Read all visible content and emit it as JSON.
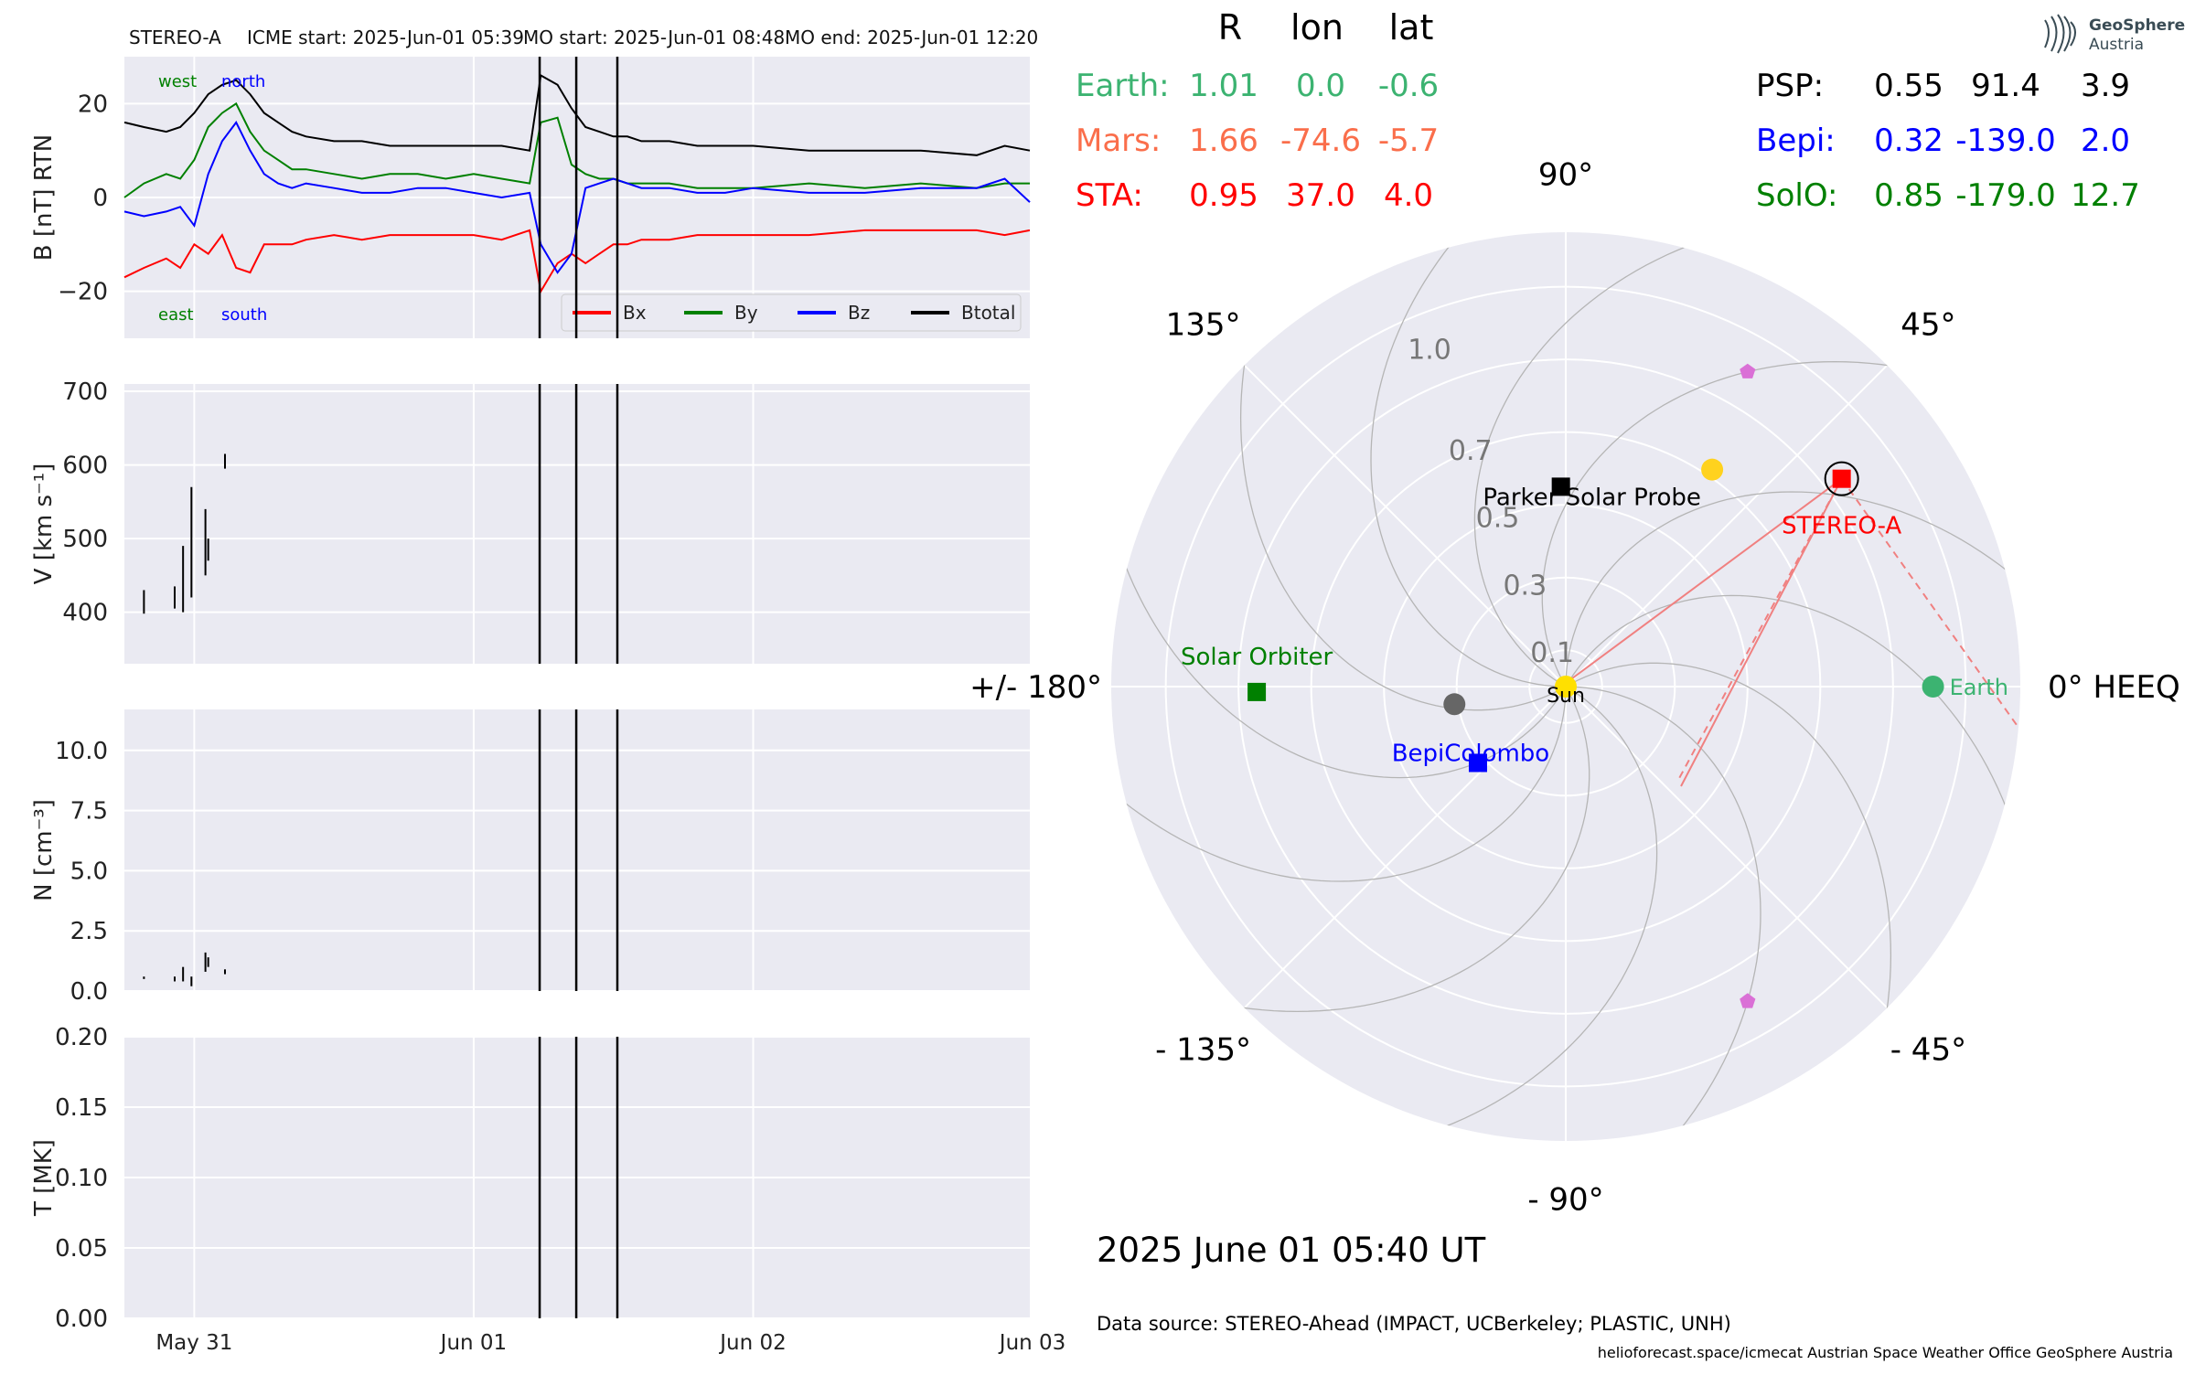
{
  "header": {
    "spacecraft": "STEREO-A",
    "icme_start": "ICME start: 2025-Jun-01 05:39",
    "mo_start": "MO start: 2025-Jun-01 08:48",
    "mo_end": "MO end: 2025-Jun-01 12:20"
  },
  "positions_table": {
    "col_headers": [
      "R",
      "lon",
      "lat"
    ],
    "left_rows": [
      {
        "name": "Earth:",
        "R": "1.01",
        "lon": "0.0",
        "lat": "-0.6",
        "color": "#3cb371"
      },
      {
        "name": "Mars:",
        "R": "1.66",
        "lon": "-74.6",
        "lat": "-5.7",
        "color": "#fa6e4b"
      },
      {
        "name": "STA:",
        "R": "0.95",
        "lon": "37.0",
        "lat": "4.0",
        "color": "#ff0000"
      }
    ],
    "right_rows": [
      {
        "name": "PSP:",
        "R": "0.55",
        "lon": "91.4",
        "lat": "3.9",
        "color": "#000000"
      },
      {
        "name": "Bepi:",
        "R": "0.32",
        "lon": "-139.0",
        "lat": "2.0",
        "color": "#0000ff"
      },
      {
        "name": "SolO:",
        "R": "0.85",
        "lon": "-179.0",
        "lat": "12.7",
        "color": "#008000"
      }
    ]
  },
  "logo": {
    "line1": "GeoSphere",
    "line2": "Austria"
  },
  "polar_plot": {
    "angle_labels": [
      {
        "deg": 0,
        "text": "0° HEEQ"
      },
      {
        "deg": 45,
        "text": "45°"
      },
      {
        "deg": 90,
        "text": "90°"
      },
      {
        "deg": 135,
        "text": "135°"
      },
      {
        "deg": 180,
        "text": "+/- 180°"
      },
      {
        "deg": -135,
        "text": "- 135°"
      },
      {
        "deg": -90,
        "text": "- 90°"
      },
      {
        "deg": -45,
        "text": "- 45°"
      }
    ],
    "radial_ticks": [
      {
        "r": 0.1,
        "text": "0.1"
      },
      {
        "r": 0.3,
        "text": "0.3"
      },
      {
        "r": 0.5,
        "text": "0.5"
      },
      {
        "r": 0.7,
        "text": "0.7"
      },
      {
        "r": 1.0,
        "text": "1.0"
      }
    ],
    "radial_rings": [
      0.1,
      0.3,
      0.5,
      0.7,
      0.9,
      1.1
    ],
    "rmax": 1.25,
    "bodies": [
      {
        "name": "Sun",
        "r": 0.0,
        "lon": 0,
        "marker": "circle",
        "color": "#ffe000",
        "label": "Sun",
        "label_color": "#000000"
      },
      {
        "name": "Earth",
        "r": 1.01,
        "lon": 0.0,
        "marker": "circle",
        "color": "#3cb371",
        "label": "Earth",
        "label_color": "#3cb371"
      },
      {
        "name": "STEREO-A",
        "r": 0.95,
        "lon": 37.0,
        "marker": "square",
        "color": "#ff0000",
        "label": "STEREO-A",
        "label_color": "#ff0000"
      },
      {
        "name": "Parker Solar Probe",
        "r": 0.55,
        "lon": 91.4,
        "marker": "square",
        "color": "#000000",
        "label": "Parker Solar Probe",
        "label_color": "#000000"
      },
      {
        "name": "BepiColombo",
        "r": 0.32,
        "lon": -139.0,
        "marker": "square",
        "color": "#0000ff",
        "label": "BepiColombo",
        "label_color": "#0000ff"
      },
      {
        "name": "Solar Orbiter",
        "r": 0.85,
        "lon": -179.0,
        "marker": "square",
        "color": "#008000",
        "label": "Solar Orbiter",
        "label_color": "#008000"
      },
      {
        "name": "Venus",
        "r": 0.72,
        "lon": 56.0,
        "marker": "circle",
        "color": "#ffd21e",
        "label": "",
        "label_color": "#000000"
      },
      {
        "name": "Mercury",
        "r": 0.31,
        "lon": -171.0,
        "marker": "circle",
        "color": "#666666",
        "label": "",
        "label_color": "#000000"
      },
      {
        "name": "L4",
        "r": 1.0,
        "lon": 60.0,
        "marker": "pentagon",
        "color": "#da70d6",
        "label": "",
        "label_color": "#000000"
      },
      {
        "name": "L5",
        "r": 1.0,
        "lon": -60.0,
        "marker": "pentagon",
        "color": "#da70d6",
        "label": "",
        "label_color": "#000000"
      }
    ],
    "date_label": "2025 June 01  05:40 UT",
    "data_source": "Data source: STEREO-Ahead (IMPACT, UCBerkeley; PLASTIC, UNH)",
    "footer": "helioforecast.space/icmecat   Austrian Space Weather Office   GeoSphere Austria"
  },
  "colors": {
    "panel_bg": "#eaeaf2",
    "grid": "#ffffff",
    "bx": "#ff0000",
    "by": "#008000",
    "bz": "#0000ff",
    "btotal": "#000000"
  },
  "chart_data": [
    {
      "type": "line",
      "panel": "magnetic_field",
      "ylabel": "B [nT] RTN",
      "ylim": [
        -30,
        30
      ],
      "yticks": [
        -20,
        0,
        20
      ],
      "ytick_labels": [
        "−20",
        "0",
        "20"
      ],
      "xlim": [
        -0.25,
        2.99
      ],
      "xticks": [
        0,
        1,
        2,
        3
      ],
      "xtick_labels": [
        "May 31",
        "Jun 01",
        "Jun 02",
        "Jun 03"
      ],
      "grid": true,
      "legend_position": "bottom-right",
      "annotations": {
        "top_left_1": "west",
        "top_left_2": "north",
        "bottom_left_1": "east",
        "bottom_left_2": "south"
      },
      "event_lines_days": [
        1.236,
        1.367,
        1.514
      ],
      "x": [
        -0.25,
        -0.18,
        -0.1,
        -0.05,
        0.0,
        0.05,
        0.1,
        0.15,
        0.2,
        0.25,
        0.3,
        0.35,
        0.4,
        0.5,
        0.6,
        0.7,
        0.8,
        0.9,
        1.0,
        1.1,
        1.2,
        1.24,
        1.3,
        1.35,
        1.4,
        1.45,
        1.5,
        1.55,
        1.6,
        1.7,
        1.8,
        1.9,
        2.0,
        2.2,
        2.4,
        2.6,
        2.8,
        2.9,
        2.99
      ],
      "series": [
        {
          "name": "Bx",
          "values": [
            -17,
            -15,
            -13,
            -15,
            -10,
            -12,
            -8,
            -15,
            -16,
            -10,
            -10,
            -10,
            -9,
            -8,
            -9,
            -8,
            -8,
            -8,
            -8,
            -9,
            -7,
            -20,
            -14,
            -12,
            -14,
            -12,
            -10,
            -10,
            -9,
            -9,
            -8,
            -8,
            -8,
            -8,
            -7,
            -7,
            -7,
            -8,
            -7
          ]
        },
        {
          "name": "By",
          "values": [
            0,
            3,
            5,
            4,
            8,
            15,
            18,
            20,
            14,
            10,
            8,
            6,
            6,
            5,
            4,
            5,
            5,
            4,
            5,
            4,
            3,
            16,
            17,
            7,
            5,
            4,
            4,
            3,
            3,
            3,
            2,
            2,
            2,
            3,
            2,
            3,
            2,
            3,
            3
          ]
        },
        {
          "name": "Bz",
          "values": [
            -3,
            -4,
            -3,
            -2,
            -6,
            5,
            12,
            16,
            10,
            5,
            3,
            2,
            3,
            2,
            1,
            1,
            2,
            2,
            1,
            0,
            1,
            -10,
            -16,
            -12,
            2,
            3,
            4,
            3,
            2,
            2,
            1,
            1,
            2,
            1,
            1,
            2,
            2,
            4,
            -1
          ]
        },
        {
          "name": "Btotal",
          "values": [
            16,
            15,
            14,
            15,
            18,
            22,
            24,
            25,
            22,
            18,
            16,
            14,
            13,
            12,
            12,
            11,
            11,
            11,
            11,
            11,
            10,
            26,
            24,
            19,
            15,
            14,
            13,
            13,
            12,
            12,
            11,
            11,
            11,
            10,
            10,
            10,
            9,
            11,
            10
          ]
        }
      ]
    },
    {
      "type": "line",
      "panel": "speed",
      "ylabel": "V [km s⁻¹]",
      "ylim": [
        330,
        710
      ],
      "yticks": [
        400,
        500,
        600,
        700
      ],
      "ytick_labels": [
        "400",
        "500",
        "600",
        "700"
      ],
      "xlim": [
        -0.25,
        2.99
      ],
      "grid": true,
      "segments": [
        {
          "x": -0.18,
          "y": [
            398,
            430
          ]
        },
        {
          "x": -0.07,
          "y": [
            405,
            435
          ]
        },
        {
          "x": -0.04,
          "y": [
            400,
            490
          ]
        },
        {
          "x": -0.01,
          "y": [
            420,
            570
          ]
        },
        {
          "x": 0.04,
          "y": [
            450,
            540
          ]
        },
        {
          "x": 0.05,
          "y": [
            470,
            500
          ]
        },
        {
          "x": 0.11,
          "y": [
            595,
            615
          ]
        }
      ]
    },
    {
      "type": "line",
      "panel": "density",
      "ylabel": "N [cm⁻³]",
      "ylim": [
        0,
        11.7
      ],
      "yticks": [
        0.0,
        2.5,
        5.0,
        7.5,
        10.0
      ],
      "ytick_labels": [
        "0.0",
        "2.5",
        "5.0",
        "7.5",
        "10.0"
      ],
      "xlim": [
        -0.25,
        2.99
      ],
      "grid": true,
      "segments": [
        {
          "x": -0.18,
          "y": [
            0.5,
            0.6
          ]
        },
        {
          "x": -0.07,
          "y": [
            0.4,
            0.6
          ]
        },
        {
          "x": -0.04,
          "y": [
            0.4,
            1.0
          ]
        },
        {
          "x": -0.01,
          "y": [
            0.2,
            0.6
          ]
        },
        {
          "x": 0.04,
          "y": [
            0.8,
            1.6
          ]
        },
        {
          "x": 0.05,
          "y": [
            1.0,
            1.4
          ]
        },
        {
          "x": 0.11,
          "y": [
            0.7,
            0.9
          ]
        }
      ]
    },
    {
      "type": "line",
      "panel": "temperature",
      "ylabel": "T [MK]",
      "ylim": [
        0,
        0.2
      ],
      "yticks": [
        0.0,
        0.05,
        0.1,
        0.15,
        0.2
      ],
      "ytick_labels": [
        "0.00",
        "0.05",
        "0.10",
        "0.15",
        "0.20"
      ],
      "xlim": [
        -0.25,
        2.99
      ],
      "xticks": [
        0,
        1,
        2,
        3
      ],
      "xtick_labels": [
        "May 31",
        "Jun 01",
        "Jun 02",
        "Jun 03"
      ],
      "grid": true,
      "segments": []
    }
  ]
}
